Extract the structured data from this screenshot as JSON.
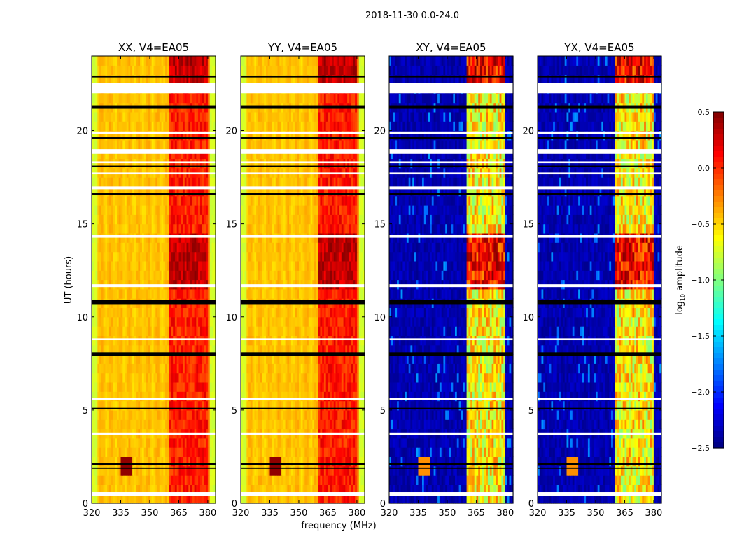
{
  "chart_data": {
    "type": "heatmap",
    "title": "2018-11-30 0.0-24.0",
    "xlabel": "frequency (MHz)",
    "ylabel": "UT (hours)",
    "xlim": [
      320,
      384
    ],
    "ylim": [
      0,
      24
    ],
    "xticks": [
      320,
      335,
      350,
      365,
      380
    ],
    "yticks": [
      0,
      5,
      10,
      15,
      20
    ],
    "colormap": "jet",
    "colorbar": {
      "label_main": "log",
      "label_sub": "10",
      "label_rest": " amplitude",
      "range": [
        -2.5,
        0.5
      ],
      "ticks": [
        "0.5",
        "0.0",
        "−0.5",
        "−1.0",
        "−1.5",
        "−2.0",
        "−2.5"
      ],
      "tick_values": [
        0.5,
        0.0,
        -0.5,
        -1.0,
        -1.5,
        -2.0,
        -2.5
      ]
    },
    "panels": [
      {
        "title": "XX, V4=EA05",
        "kind": "parallel"
      },
      {
        "title": "YY, V4=EA05",
        "kind": "parallel"
      },
      {
        "title": "XY, V4=EA05",
        "kind": "cross"
      },
      {
        "title": "YX, V4=EA05",
        "kind": "cross"
      }
    ],
    "model": {
      "subbands_mhz": [
        [
          360.5,
          365
        ],
        [
          365.5,
          370
        ],
        [
          370.5,
          375
        ],
        [
          375.5,
          380
        ]
      ],
      "parallel": {
        "background": -0.45,
        "band": 0.05,
        "band_high": 0.3,
        "edge": -0.75
      },
      "cross": {
        "background": -2.4,
        "band": -0.6,
        "band_high": 0.1,
        "divider": -2.0
      },
      "high_hours": [
        [
          11.2,
          14.2
        ],
        [
          22.3,
          24
        ]
      ],
      "rfi_feature": {
        "freq_mhz": 338,
        "hour": 2.0
      }
    },
    "flagged_hours": [
      [
        22.0,
        22.55
      ],
      [
        19.8,
        19.95
      ],
      [
        18.75,
        19.0
      ],
      [
        18.25,
        18.35
      ],
      [
        17.65,
        17.75
      ],
      [
        16.85,
        17.0
      ],
      [
        14.25,
        14.4
      ],
      [
        11.6,
        11.75
      ],
      [
        8.75,
        8.85
      ],
      [
        5.55,
        5.65
      ],
      [
        3.65,
        3.8
      ],
      [
        0.4,
        0.6
      ]
    ],
    "zero_hours": [
      [
        22.85,
        22.95
      ],
      [
        21.2,
        21.35
      ],
      [
        19.55,
        19.65
      ],
      [
        18.05,
        18.12
      ],
      [
        16.55,
        16.65
      ],
      [
        10.65,
        10.9
      ],
      [
        7.9,
        8.1
      ],
      [
        5.05,
        5.12
      ],
      [
        2.05,
        2.15
      ],
      [
        1.85,
        1.92
      ]
    ]
  }
}
